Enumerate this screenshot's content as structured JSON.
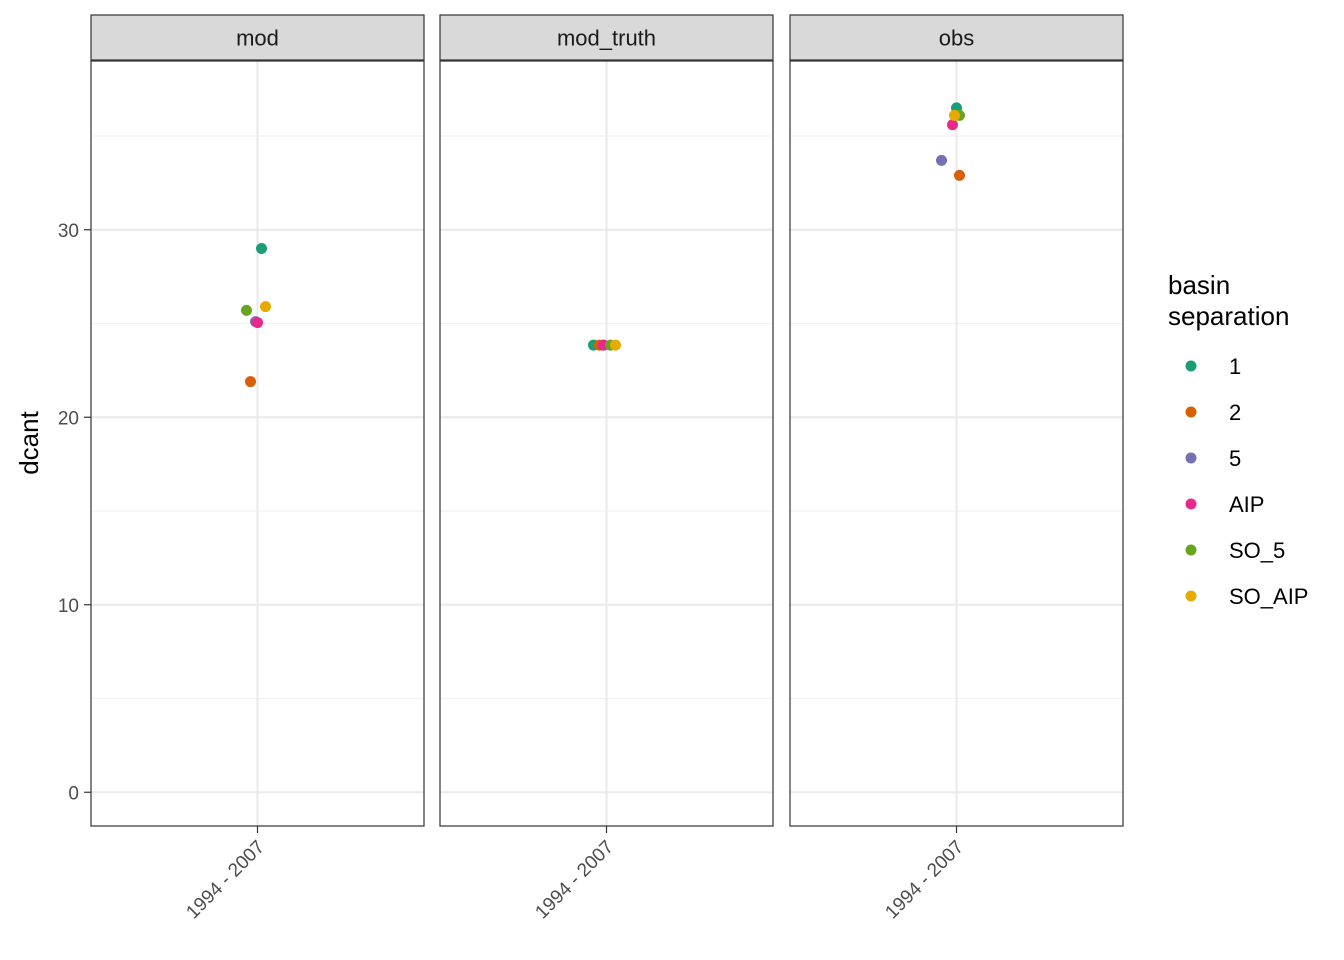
{
  "chart_data": {
    "type": "scatter",
    "facet_variable": "panel",
    "panels": [
      {
        "name": "mod",
        "points": [
          {
            "series": "1",
            "x": "1994 - 2007",
            "y": 29.0
          },
          {
            "series": "2",
            "x": "1994 - 2007",
            "y": 21.9
          },
          {
            "series": "5",
            "x": "1994 - 2007",
            "y": 25.1
          },
          {
            "series": "AIP",
            "x": "1994 - 2007",
            "y": 25.05
          },
          {
            "series": "SO_5",
            "x": "1994 - 2007",
            "y": 25.7
          },
          {
            "series": "SO_AIP",
            "x": "1994 - 2007",
            "y": 25.9
          }
        ]
      },
      {
        "name": "mod_truth",
        "points": [
          {
            "series": "1",
            "x": "1994 - 2007",
            "y": 23.85
          },
          {
            "series": "2",
            "x": "1994 - 2007",
            "y": 23.85
          },
          {
            "series": "5",
            "x": "1994 - 2007",
            "y": 23.85
          },
          {
            "series": "AIP",
            "x": "1994 - 2007",
            "y": 23.85
          },
          {
            "series": "SO_5",
            "x": "1994 - 2007",
            "y": 23.85
          },
          {
            "series": "SO_AIP",
            "x": "1994 - 2007",
            "y": 23.85
          }
        ]
      },
      {
        "name": "obs",
        "points": [
          {
            "series": "1",
            "x": "1994 - 2007",
            "y": 36.5
          },
          {
            "series": "2",
            "x": "1994 - 2007",
            "y": 32.9
          },
          {
            "series": "5",
            "x": "1994 - 2007",
            "y": 33.7
          },
          {
            "series": "AIP",
            "x": "1994 - 2007",
            "y": 35.6
          },
          {
            "series": "SO_5",
            "x": "1994 - 2007",
            "y": 36.1
          },
          {
            "series": "SO_AIP",
            "x": "1994 - 2007",
            "y": 36.1
          }
        ]
      }
    ],
    "x_categories": [
      "1994 - 2007"
    ],
    "ylabel": "dcant",
    "xlabel": "",
    "ylim": [
      -1.8,
      39.0
    ],
    "y_ticks": [
      0,
      10,
      20,
      30
    ],
    "grid": true,
    "legend": {
      "title": "basin\nseparation",
      "title_lines": [
        "basin",
        "separation"
      ],
      "position": "right",
      "entries": [
        {
          "label": "1",
          "color": "#1B9E77"
        },
        {
          "label": "2",
          "color": "#D95F02"
        },
        {
          "label": "5",
          "color": "#7570B3"
        },
        {
          "label": "AIP",
          "color": "#E7298A"
        },
        {
          "label": "SO_5",
          "color": "#66A61E"
        },
        {
          "label": "SO_AIP",
          "color": "#E6AB02"
        }
      ]
    },
    "colors": {
      "panel_border": "#333333",
      "strip_fill": "#d9d9d9",
      "grid_major": "#ebebeb",
      "grid_minor": "#f2f2f2"
    }
  }
}
